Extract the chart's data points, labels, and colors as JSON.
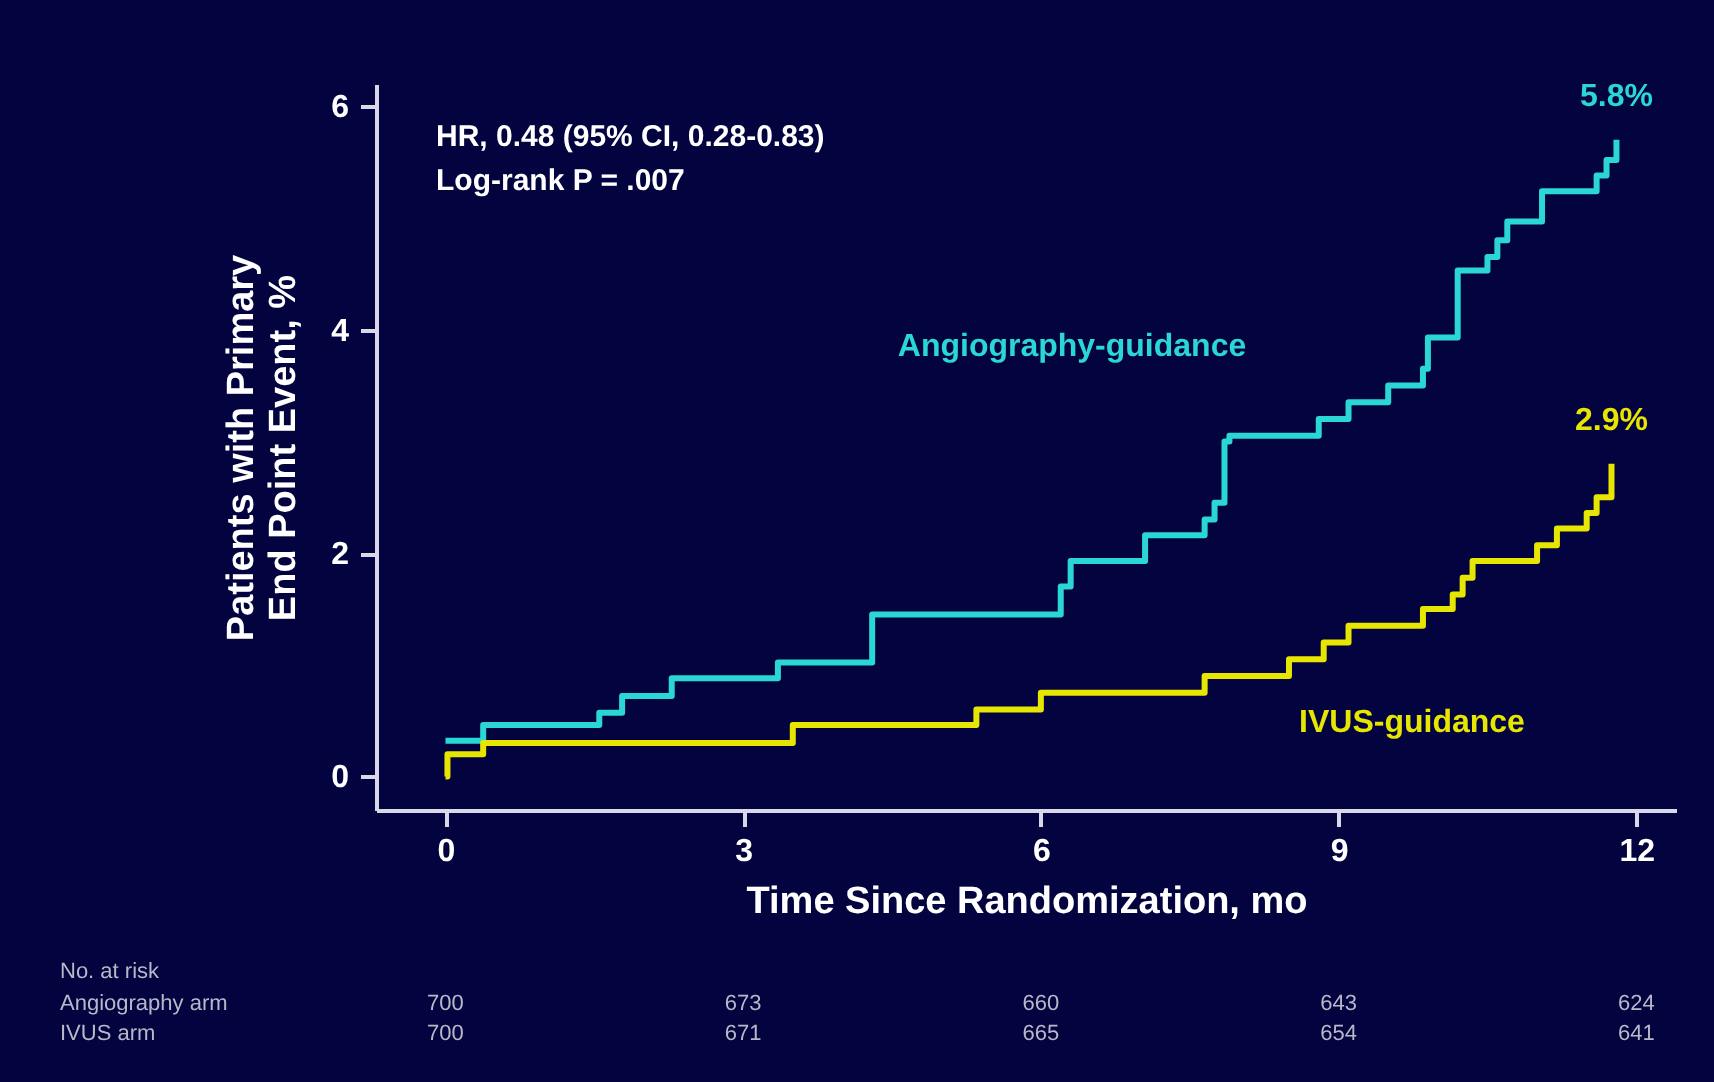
{
  "chart_data": {
    "type": "step",
    "xlabel": "Time Since Randomization, mo",
    "ylabel": "Patients with Primary\nEnd Point Event, %",
    "xlim": [
      -0.7,
      12.4
    ],
    "xticks": [
      0,
      3,
      6,
      9,
      12
    ],
    "ylim": [
      -0.3,
      6.2
    ],
    "yticks": [
      0,
      2,
      4,
      6
    ],
    "grid": false,
    "legend": false,
    "series": [
      {
        "name": "Angiography-guidance",
        "color": "#2ad6d6",
        "x": [
          0,
          0.38,
          1.55,
          1.78,
          2.28,
          3.35,
          4.3,
          6.2,
          6.3,
          7.05,
          7.65,
          7.75,
          7.85,
          7.9,
          8.8,
          9.1,
          9.5,
          9.85,
          9.9,
          10.2,
          10.5,
          10.6,
          10.7,
          11.05,
          11.6,
          11.7,
          11.8
        ],
        "values": [
          0.32,
          0.46,
          0.57,
          0.72,
          0.88,
          1.02,
          1.45,
          1.7,
          1.93,
          2.16,
          2.3,
          2.45,
          3.0,
          3.05,
          3.2,
          3.35,
          3.5,
          3.65,
          3.93,
          4.53,
          4.65,
          4.8,
          4.97,
          5.24,
          5.38,
          5.52,
          5.7
        ]
      },
      {
        "name": "IVUS-guidance",
        "color": "#e6e600",
        "x": [
          0,
          0.02,
          0.38,
          3.5,
          5.35,
          6.0,
          7.65,
          8.5,
          8.85,
          9.1,
          9.85,
          10.15,
          10.25,
          10.35,
          11.0,
          11.2,
          11.5,
          11.6,
          11.75
        ],
        "values": [
          0,
          0.2,
          0.3,
          0.46,
          0.6,
          0.75,
          0.9,
          1.05,
          1.2,
          1.35,
          1.5,
          1.63,
          1.78,
          1.93,
          2.07,
          2.22,
          2.36,
          2.5,
          2.8
        ]
      }
    ],
    "annotations": [
      "HR, 0.48 (95% CI, 0.28-0.83)",
      "Log-rank P = .007",
      {
        "text": "5.8%",
        "x": 11.8,
        "y": 5.7
      },
      {
        "text": "2.9%",
        "x": 11.75,
        "y": 2.8
      },
      "No. at risk",
      "Angiography arm",
      "700",
      "673",
      "660",
      "643",
      "624",
      "IVUS arm",
      "700",
      "671",
      "665",
      "654",
      "641"
    ]
  }
}
